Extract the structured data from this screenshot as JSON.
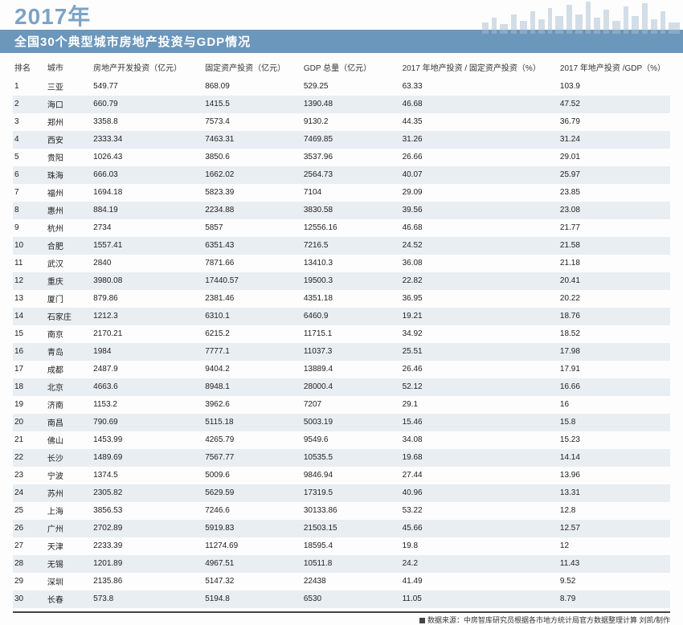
{
  "title_year": "2017年",
  "subtitle": "全国30个典型城市房地产投资与GDP情况",
  "skyline_color": "#a8bed2",
  "header_bar_color": "#6b97bd",
  "row_alt_color": "#e9eef3",
  "columns": [
    "排名",
    "城市",
    "房地产开发投资（亿元）",
    "固定资产投资（亿元）",
    "GDP 总量（亿元）",
    "2017 年地产投资 / 固定资产投资（%）",
    "2017 年地产投资 /GDP（%）"
  ],
  "rows": [
    [
      "1",
      "三亚",
      "549.77",
      "868.09",
      "529.25",
      "63.33",
      "103.9"
    ],
    [
      "2",
      "海口",
      "660.79",
      "1415.5",
      "1390.48",
      "46.68",
      "47.52"
    ],
    [
      "3",
      "郑州",
      "3358.8",
      "7573.4",
      "9130.2",
      "44.35",
      "36.79"
    ],
    [
      "4",
      "西安",
      "2333.34",
      "7463.31",
      "7469.85",
      "31.26",
      "31.24"
    ],
    [
      "5",
      "贵阳",
      "1026.43",
      "3850.6",
      "3537.96",
      "26.66",
      "29.01"
    ],
    [
      "6",
      "珠海",
      "666.03",
      "1662.02",
      "2564.73",
      "40.07",
      "25.97"
    ],
    [
      "7",
      "福州",
      "1694.18",
      "5823.39",
      "7104",
      "29.09",
      "23.85"
    ],
    [
      "8",
      "惠州",
      "884.19",
      "2234.88",
      "3830.58",
      "39.56",
      "23.08"
    ],
    [
      "9",
      "杭州",
      "2734",
      "5857",
      "12556.16",
      "46.68",
      "21.77"
    ],
    [
      "10",
      "合肥",
      "1557.41",
      "6351.43",
      "7216.5",
      "24.52",
      "21.58"
    ],
    [
      "11",
      "武汉",
      "2840",
      "7871.66",
      "13410.3",
      "36.08",
      "21.18"
    ],
    [
      "12",
      "重庆",
      "3980.08",
      "17440.57",
      "19500.3",
      "22.82",
      "20.41"
    ],
    [
      "13",
      "厦门",
      "879.86",
      "2381.46",
      "4351.18",
      "36.95",
      "20.22"
    ],
    [
      "14",
      "石家庄",
      "1212.3",
      "6310.1",
      "6460.9",
      "19.21",
      "18.76"
    ],
    [
      "15",
      "南京",
      "2170.21",
      "6215.2",
      "11715.1",
      "34.92",
      "18.52"
    ],
    [
      "16",
      "青岛",
      "1984",
      "7777.1",
      "11037.3",
      "25.51",
      "17.98"
    ],
    [
      "17",
      "成都",
      "2487.9",
      "9404.2",
      "13889.4",
      "26.46",
      "17.91"
    ],
    [
      "18",
      "北京",
      "4663.6",
      "8948.1",
      "28000.4",
      "52.12",
      "16.66"
    ],
    [
      "19",
      "济南",
      "1153.2",
      "3962.6",
      "7207",
      "29.1",
      "16"
    ],
    [
      "20",
      "南昌",
      "790.69",
      "5115.18",
      "5003.19",
      "15.46",
      "15.8"
    ],
    [
      "21",
      "佛山",
      "1453.99",
      "4265.79",
      "9549.6",
      "34.08",
      "15.23"
    ],
    [
      "22",
      "长沙",
      "1489.69",
      "7567.77",
      "10535.5",
      "19.68",
      "14.14"
    ],
    [
      "23",
      "宁波",
      "1374.5",
      "5009.6",
      "9846.94",
      "27.44",
      "13.96"
    ],
    [
      "24",
      "苏州",
      "2305.82",
      "5629.59",
      "17319.5",
      "40.96",
      "13.31"
    ],
    [
      "25",
      "上海",
      "3856.53",
      "7246.6",
      "30133.86",
      "53.22",
      "12.8"
    ],
    [
      "26",
      "广州",
      "2702.89",
      "5919.83",
      "21503.15",
      "45.66",
      "12.57"
    ],
    [
      "27",
      "天津",
      "2233.39",
      "11274.69",
      "18595.4",
      "19.8",
      "12"
    ],
    [
      "28",
      "无锡",
      "1201.89",
      "4967.51",
      "10511.8",
      "24.2",
      "11.43"
    ],
    [
      "29",
      "深圳",
      "2135.86",
      "5147.32",
      "22438",
      "41.49",
      "9.52"
    ],
    [
      "30",
      "长春",
      "573.8",
      "5194.8",
      "6530",
      "11.05",
      "8.79"
    ]
  ],
  "footer": "数据来源：中房智库研究员根据各市地方统计局官方数据整理计算   刘凯/制作"
}
